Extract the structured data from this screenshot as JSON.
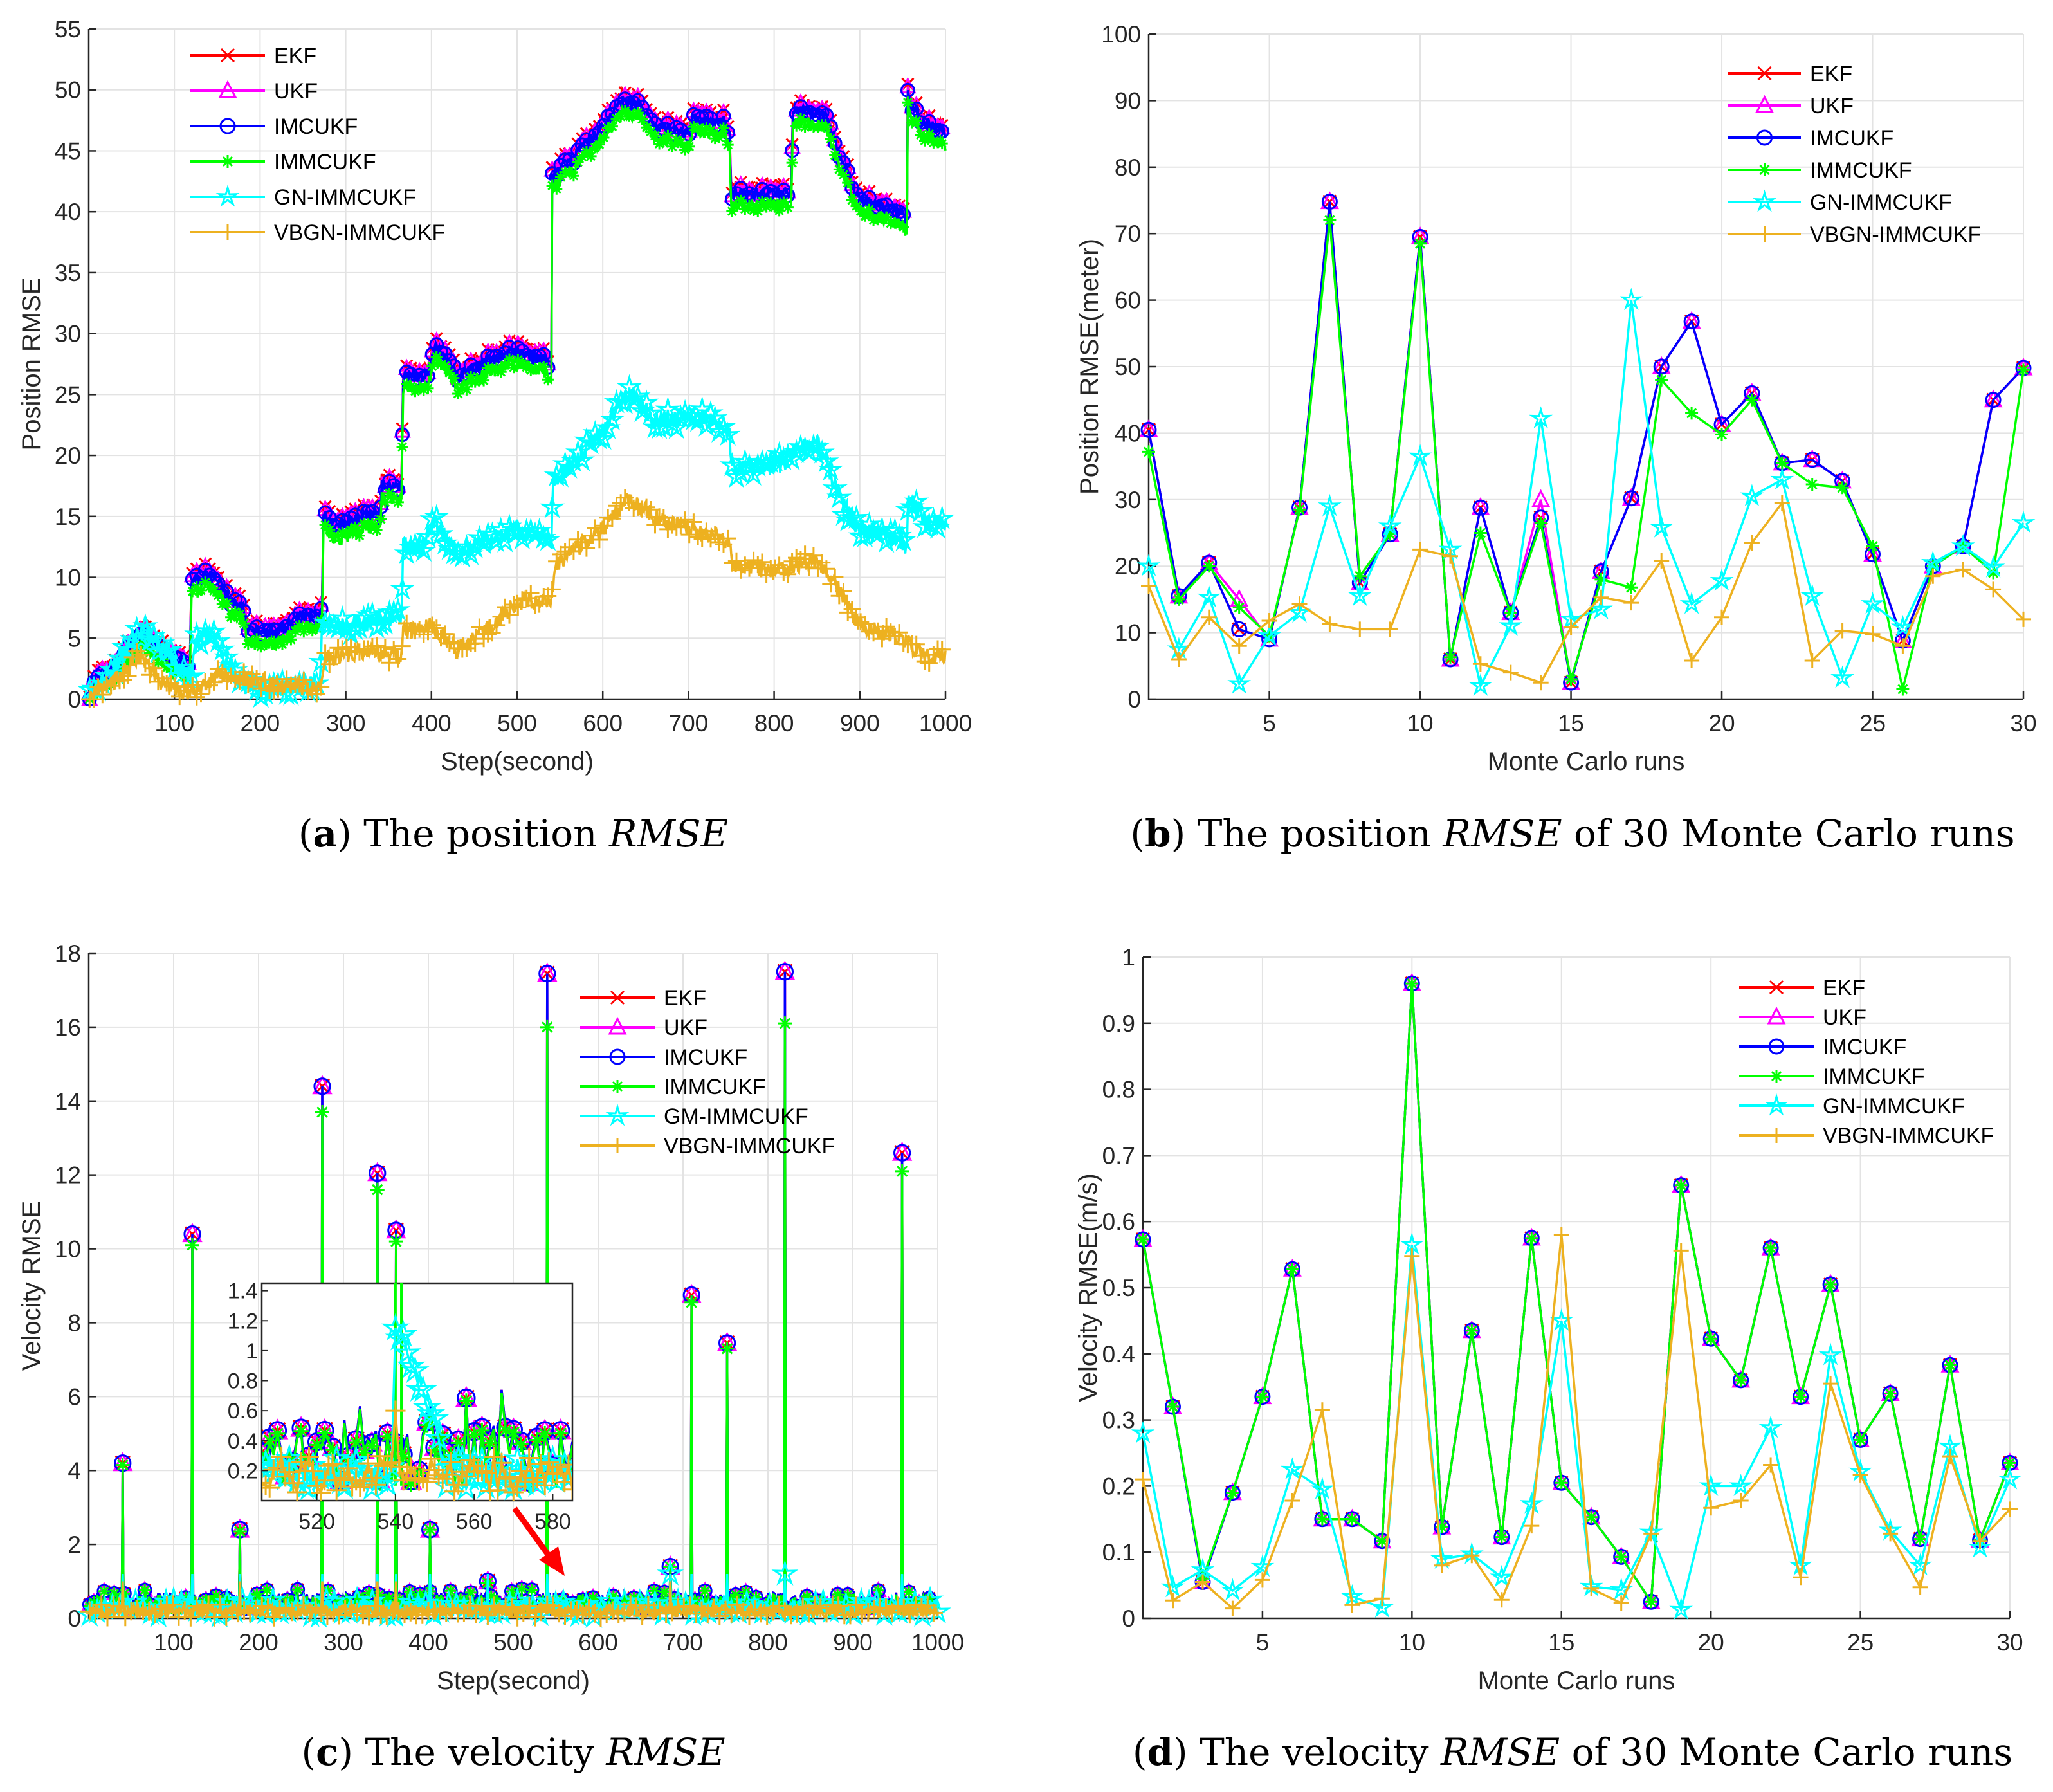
{
  "captions": [
    {
      "label": "a",
      "text": "The position",
      "em": "RMSE",
      "tail": ""
    },
    {
      "label": "b",
      "text": "The position",
      "em": "RMSE",
      "tail": "of 30 Monte Carlo runs"
    },
    {
      "label": "c",
      "text": "The velocity",
      "em": "RMSE",
      "tail": ""
    },
    {
      "label": "d",
      "text": "The velocity",
      "em": "RMSE",
      "tail": "of 30 Monte Carlo runs"
    }
  ],
  "colors": {
    "EKF": "#FF0000",
    "UKF": "#FF00FF",
    "IMCUKF": "#0000FF",
    "IMMCUKF": "#00FF00",
    "GN": "#00FFFF",
    "VBGN": "#EDB120",
    "arrow": "#FF0000"
  },
  "chart_data": [
    {
      "id": "a",
      "type": "line",
      "title": "",
      "xlabel": "Step(second)",
      "ylabel": "Position RMSE",
      "xlim": [
        0,
        1000
      ],
      "ylim": [
        0,
        55
      ],
      "grid": true,
      "legend_position": "top-left",
      "xticks": [
        100,
        200,
        300,
        400,
        500,
        600,
        700,
        800,
        900,
        1000
      ],
      "yticks": [
        0,
        5,
        10,
        15,
        20,
        25,
        30,
        35,
        40,
        45,
        50,
        55
      ],
      "legend": [
        "EKF",
        "UKF",
        "IMCUKF",
        "IMMCUKF",
        "GN-IMMCUKF",
        "VBGN-IMMCUKF"
      ],
      "approx_keypoints": {
        "EKF_UKF_IMCUKF": [
          [
            0,
            0
          ],
          [
            10,
            2
          ],
          [
            30,
            2.5
          ],
          [
            45,
            4
          ],
          [
            65,
            5.8
          ],
          [
            90,
            3.5
          ],
          [
            118,
            2.5
          ],
          [
            120,
            9.5
          ],
          [
            145,
            10.5
          ],
          [
            165,
            8
          ],
          [
            180,
            7.5
          ],
          [
            185,
            5.5
          ],
          [
            220,
            5.5
          ],
          [
            250,
            7
          ],
          [
            272,
            7
          ],
          [
            274,
            15
          ],
          [
            290,
            14
          ],
          [
            320,
            15
          ],
          [
            340,
            15
          ],
          [
            342,
            17.5
          ],
          [
            365,
            17.5
          ],
          [
            367,
            26.5
          ],
          [
            395,
            26.5
          ],
          [
            405,
            29
          ],
          [
            430,
            26.5
          ],
          [
            490,
            28.5
          ],
          [
            530,
            28
          ],
          [
            540,
            27
          ],
          [
            541,
            43
          ],
          [
            560,
            44
          ],
          [
            600,
            47
          ],
          [
            620,
            49
          ],
          [
            640,
            49
          ],
          [
            660,
            47
          ],
          [
            700,
            46.5
          ],
          [
            705,
            47.5
          ],
          [
            740,
            47.5
          ],
          [
            748,
            46.5
          ],
          [
            750,
            41.5
          ],
          [
            820,
            41.5
          ],
          [
            822,
            48.5
          ],
          [
            860,
            48
          ],
          [
            880,
            44
          ],
          [
            900,
            41
          ],
          [
            950,
            40
          ],
          [
            955,
            39
          ],
          [
            956,
            49.5
          ],
          [
            970,
            47.5
          ],
          [
            1000,
            46.5
          ]
        ],
        "IMMCUKF_offset": -1,
        "GN-IMMCUKF": [
          [
            0,
            0
          ],
          [
            40,
            3.5
          ],
          [
            65,
            5.8
          ],
          [
            100,
            3
          ],
          [
            120,
            2
          ],
          [
            125,
            4.5
          ],
          [
            140,
            5.5
          ],
          [
            160,
            3
          ],
          [
            185,
            1
          ],
          [
            200,
            0.5
          ],
          [
            230,
            1
          ],
          [
            270,
            1.5
          ],
          [
            272,
            6
          ],
          [
            300,
            6
          ],
          [
            340,
            6.5
          ],
          [
            365,
            7
          ],
          [
            367,
            12.5
          ],
          [
            390,
            12.5
          ],
          [
            405,
            14.5
          ],
          [
            430,
            12
          ],
          [
            500,
            14
          ],
          [
            540,
            13
          ],
          [
            542,
            17.5
          ],
          [
            560,
            19
          ],
          [
            600,
            22
          ],
          [
            630,
            25
          ],
          [
            660,
            23
          ],
          [
            730,
            23
          ],
          [
            748,
            22
          ],
          [
            750,
            19
          ],
          [
            800,
            19
          ],
          [
            830,
            20.5
          ],
          [
            850,
            21
          ],
          [
            880,
            16
          ],
          [
            900,
            14
          ],
          [
            950,
            13
          ],
          [
            955,
            12.5
          ],
          [
            957,
            17
          ],
          [
            975,
            14.5
          ],
          [
            1000,
            14.5
          ]
        ],
        "VBGN-IMMCUKF": [
          [
            0,
            0
          ],
          [
            30,
            1.5
          ],
          [
            60,
            3.5
          ],
          [
            90,
            1
          ],
          [
            120,
            0.5
          ],
          [
            150,
            2
          ],
          [
            200,
            1.5
          ],
          [
            270,
            0.8
          ],
          [
            275,
            3.5
          ],
          [
            330,
            4
          ],
          [
            365,
            3.5
          ],
          [
            367,
            5.5
          ],
          [
            400,
            6
          ],
          [
            430,
            4
          ],
          [
            470,
            6
          ],
          [
            500,
            8
          ],
          [
            540,
            8
          ],
          [
            545,
            11
          ],
          [
            600,
            14
          ],
          [
            630,
            16.5
          ],
          [
            660,
            15
          ],
          [
            740,
            13
          ],
          [
            748,
            13
          ],
          [
            752,
            11
          ],
          [
            800,
            10.5
          ],
          [
            850,
            11.5
          ],
          [
            880,
            8.5
          ],
          [
            900,
            6
          ],
          [
            950,
            5
          ],
          [
            975,
            3.5
          ],
          [
            1000,
            3.5
          ]
        ]
      }
    },
    {
      "id": "b",
      "type": "line",
      "title": "",
      "xlabel": "Monte Carlo runs",
      "ylabel": "Position RMSE(meter)",
      "xlim": [
        1,
        30
      ],
      "ylim": [
        0,
        100
      ],
      "grid": true,
      "legend_position": "top-right",
      "xticks": [
        5,
        10,
        15,
        20,
        25,
        30
      ],
      "yticks": [
        0,
        10,
        20,
        30,
        40,
        50,
        60,
        70,
        80,
        90,
        100
      ],
      "x": [
        1,
        2,
        3,
        4,
        5,
        6,
        7,
        8,
        9,
        10,
        11,
        12,
        13,
        14,
        15,
        16,
        17,
        18,
        19,
        20,
        21,
        22,
        23,
        24,
        25,
        26,
        27,
        28,
        29,
        30
      ],
      "series": [
        {
          "name": "EKF",
          "values": [
            40.5,
            15.5,
            20.5,
            10.5,
            9,
            28.8,
            74.8,
            17.5,
            24.8,
            69.5,
            6,
            28.8,
            13,
            27.3,
            2.5,
            19.2,
            30.2,
            50,
            56.8,
            41.3,
            46,
            35.5,
            36,
            32.8,
            21.8,
            8.8,
            20,
            23,
            45,
            49.8
          ]
        },
        {
          "name": "UKF",
          "values": [
            40.5,
            15.5,
            20.5,
            15,
            9,
            28.8,
            74.8,
            17.5,
            24.8,
            69.5,
            6,
            28.8,
            13,
            30,
            2.5,
            19.2,
            30.2,
            50,
            56.8,
            41.3,
            46,
            35.5,
            36,
            32.8,
            21.8,
            8.8,
            20,
            23,
            45,
            49.8
          ]
        },
        {
          "name": "IMCUKF",
          "values": [
            40.5,
            15.5,
            20.5,
            10.5,
            9,
            28.8,
            74.8,
            17.5,
            24.8,
            69.5,
            6,
            28.8,
            13,
            27.3,
            2.5,
            19.2,
            30.2,
            50,
            56.8,
            41.3,
            46,
            35.5,
            36,
            32.8,
            21.8,
            8.8,
            20,
            23,
            45,
            49.8
          ]
        },
        {
          "name": "IMMCUKF",
          "values": [
            37.2,
            15,
            20,
            13.8,
            9.5,
            28.5,
            72,
            18.5,
            24.8,
            68.5,
            6.3,
            25,
            13,
            26.5,
            3,
            18,
            16.8,
            48,
            43,
            39.8,
            45,
            35.5,
            32.3,
            31.8,
            23,
            1.5,
            20,
            23,
            19,
            49.5
          ]
        },
        {
          "name": "GN-IMMCUKF",
          "values": [
            20,
            7.5,
            15.3,
            2.3,
            9.5,
            13,
            29,
            15.5,
            26,
            36.5,
            22.5,
            2,
            11,
            42.2,
            12,
            13.5,
            60,
            25.8,
            14.3,
            17.8,
            30.5,
            33,
            15.5,
            3.2,
            14.3,
            10.8,
            20.5,
            23,
            19.8,
            26.5
          ]
        },
        {
          "name": "VBGN-IMMCUKF",
          "values": [
            17,
            6,
            12.3,
            8,
            11.8,
            14.3,
            11.3,
            10.5,
            10.5,
            22.5,
            21.5,
            5.3,
            4,
            2.5,
            10.8,
            15.3,
            14.5,
            20.8,
            5.8,
            12.3,
            23.5,
            29.5,
            5.8,
            10.3,
            9.8,
            8,
            18.5,
            19.5,
            16.5,
            12
          ]
        }
      ]
    },
    {
      "id": "c",
      "type": "line",
      "title": "",
      "xlabel": "Step(second)",
      "ylabel": "Velocity RMSE",
      "xlim": [
        0,
        1000
      ],
      "ylim": [
        0,
        18
      ],
      "grid": true,
      "legend_position": "top-right",
      "xticks": [
        100,
        200,
        300,
        400,
        500,
        600,
        700,
        800,
        900,
        1000
      ],
      "yticks": [
        0,
        2,
        4,
        6,
        8,
        10,
        12,
        14,
        16,
        18
      ],
      "legend": [
        "EKF",
        "UKF",
        "IMCUKF",
        "IMMCUKF",
        "GM-IMMCUKF",
        "VBGN-IMMCUKF"
      ],
      "spikes_step_ekf_immcukf": [
        [
          40,
          4.2,
          4.15
        ],
        [
          122,
          10.4,
          10.1
        ],
        [
          178,
          2.4,
          2.35
        ],
        [
          275,
          14.4,
          13.7
        ],
        [
          340,
          12.05,
          11.6
        ],
        [
          362,
          10.5,
          10.2
        ],
        [
          402,
          2.4,
          2.4
        ],
        [
          470,
          1.0,
          0.95
        ],
        [
          540,
          17.45,
          16
        ],
        [
          685,
          1.4,
          1.4
        ],
        [
          710,
          8.75,
          8.55
        ],
        [
          752,
          7.45,
          7.3
        ],
        [
          820,
          17.5,
          16.1
        ],
        [
          958,
          12.6,
          12.1
        ]
      ],
      "inset": {
        "xlim": [
          506,
          585
        ],
        "ylim": [
          0,
          1.45
        ],
        "xticks": [
          520,
          540,
          560,
          580
        ],
        "yticks": [
          0.2,
          0.4,
          0.6,
          0.8,
          1,
          1.2,
          1.4
        ]
      }
    },
    {
      "id": "d",
      "type": "line",
      "title": "",
      "xlabel": "Monte Carlo runs",
      "ylabel": "Velocity RMSE(m/s)",
      "xlim": [
        1,
        30
      ],
      "ylim": [
        0,
        1
      ],
      "grid": true,
      "legend_position": "top-right",
      "xticks": [
        5,
        10,
        15,
        20,
        25,
        30
      ],
      "yticks": [
        0,
        0.1,
        0.2,
        0.3,
        0.4,
        0.5,
        0.6,
        0.7,
        0.8,
        0.9,
        1
      ],
      "x": [
        1,
        2,
        3,
        4,
        5,
        6,
        7,
        8,
        9,
        10,
        11,
        12,
        13,
        14,
        15,
        16,
        17,
        18,
        19,
        20,
        21,
        22,
        23,
        24,
        25,
        26,
        27,
        28,
        29,
        30
      ],
      "series": [
        {
          "name": "EKF",
          "values": [
            0.573,
            0.32,
            0.055,
            0.19,
            0.335,
            0.528,
            0.15,
            0.15,
            0.117,
            0.96,
            0.138,
            0.435,
            0.123,
            0.575,
            0.205,
            0.153,
            0.093,
            0.025,
            0.655,
            0.423,
            0.36,
            0.56,
            0.335,
            0.505,
            0.27,
            0.34,
            0.12,
            0.383,
            0.118,
            0.235
          ]
        },
        {
          "name": "UKF",
          "values": [
            0.573,
            0.32,
            0.055,
            0.19,
            0.335,
            0.528,
            0.15,
            0.15,
            0.117,
            0.96,
            0.138,
            0.435,
            0.123,
            0.575,
            0.205,
            0.153,
            0.093,
            0.025,
            0.655,
            0.423,
            0.36,
            0.56,
            0.335,
            0.505,
            0.27,
            0.34,
            0.12,
            0.383,
            0.118,
            0.235
          ]
        },
        {
          "name": "IMCUKF",
          "values": [
            0.573,
            0.32,
            0.055,
            0.19,
            0.335,
            0.528,
            0.15,
            0.15,
            0.117,
            0.96,
            0.138,
            0.435,
            0.123,
            0.575,
            0.205,
            0.153,
            0.093,
            0.025,
            0.655,
            0.423,
            0.36,
            0.56,
            0.335,
            0.505,
            0.27,
            0.34,
            0.12,
            0.383,
            0.118,
            0.235
          ]
        },
        {
          "name": "IMMCUKF",
          "values": [
            0.573,
            0.32,
            0.06,
            0.19,
            0.335,
            0.528,
            0.15,
            0.15,
            0.117,
            0.96,
            0.138,
            0.435,
            0.123,
            0.575,
            0.205,
            0.153,
            0.093,
            0.025,
            0.655,
            0.423,
            0.36,
            0.56,
            0.335,
            0.505,
            0.27,
            0.34,
            0.12,
            0.383,
            0.118,
            0.235
          ]
        },
        {
          "name": "GN-IMMCUKF",
          "values": [
            0.28,
            0.047,
            0.073,
            0.042,
            0.078,
            0.225,
            0.195,
            0.033,
            0.016,
            0.565,
            0.09,
            0.097,
            0.062,
            0.173,
            0.45,
            0.048,
            0.043,
            0.13,
            0.013,
            0.2,
            0.2,
            0.288,
            0.08,
            0.398,
            0.222,
            0.133,
            0.08,
            0.26,
            0.107,
            0.21
          ]
        },
        {
          "name": "VBGN-IMMCUKF",
          "values": [
            0.21,
            0.027,
            0.055,
            0.015,
            0.058,
            0.178,
            0.315,
            0.02,
            0.03,
            0.548,
            0.08,
            0.095,
            0.028,
            0.14,
            0.58,
            0.045,
            0.023,
            0.128,
            0.556,
            0.167,
            0.178,
            0.232,
            0.062,
            0.355,
            0.217,
            0.128,
            0.047,
            0.245,
            0.117,
            0.165
          ]
        }
      ]
    }
  ]
}
